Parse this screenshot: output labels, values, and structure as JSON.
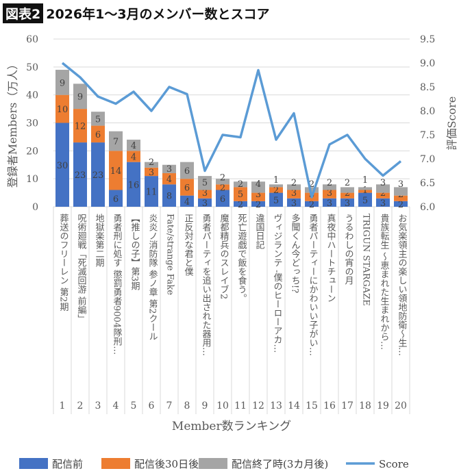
{
  "title_tag": "図表2",
  "title": "2026年1〜3月のメンバー数とスコア",
  "chart_data": {
    "type": "bar+line",
    "xlabel": "Member数ランキング",
    "ylabel_left": "登録者Members（万人）",
    "ylabel_right": "評価Score",
    "ylim_left": [
      0,
      60
    ],
    "yticks_left": [
      "0",
      "10",
      "20",
      "30",
      "40",
      "50",
      "60"
    ],
    "ylim_right": [
      6.0,
      9.5
    ],
    "yticks_right": [
      "6.0",
      "6.5",
      "7.0",
      "7.5",
      "8.0",
      "8.5",
      "9.0",
      "9.5"
    ],
    "grid": true,
    "legend_position": "bottom",
    "ranks": [
      "1",
      "2",
      "3",
      "4",
      "5",
      "6",
      "7",
      "8",
      "9",
      "10",
      "11",
      "12",
      "13",
      "14",
      "15",
      "16",
      "17",
      "18",
      "19",
      "20"
    ],
    "categories": [
      "葬送のフリーレン 第2期",
      "呪術廻戦「死滅回游 前編」",
      "地獄楽第二期",
      "勇者刑に処す 懲罰勇者9004隊刑…",
      "【推しの子】第3期",
      "炎炎ノ消防隊 参ノ章 第2クール",
      "Fate/strange Fake",
      "正反対な君と僕",
      "勇者パーティを追い出された器用…",
      "魔都精兵のスレイブ2",
      "死亡遊戯で飯を食う。",
      "違国日記",
      "ヴィジランテ -僕のヒーローアカ…",
      "多聞くん今どっち!?",
      "勇者パーティーにかわいい子がい…",
      "真夜中ハートチューン",
      "うるわしの宵の月",
      "TRIGUN STARGAZE",
      "貴族転生 〜恵まれた生まれから…",
      "お気楽領主の楽しい領地防衛〜生…"
    ],
    "series": [
      {
        "name": "配信前",
        "type": "bar",
        "color": "#4472c4",
        "values": [
          30,
          23,
          23,
          6,
          16,
          11,
          8,
          4,
          3,
          6,
          2,
          2,
          5,
          3,
          2,
          3,
          3,
          5,
          3,
          2
        ]
      },
      {
        "name": "配信後30日後",
        "type": "bar",
        "color": "#ed7d31",
        "values": [
          10,
          12,
          6,
          14,
          4,
          3,
          4,
          6,
          3,
          2,
          5,
          3,
          2,
          3,
          3,
          3,
          2,
          1,
          2,
          2
        ]
      },
      {
        "name": "配信終了時(3カ月後)",
        "type": "bar",
        "color": "#a5a5a5",
        "values": [
          9,
          9,
          5,
          7,
          4,
          2,
          3,
          6,
          5,
          2,
          2,
          4,
          1,
          2,
          2,
          2,
          2,
          1,
          3,
          3
        ]
      },
      {
        "name": "Score",
        "type": "line",
        "axis": "right",
        "color": "#5b9bd5",
        "values": [
          9.0,
          8.7,
          8.3,
          8.15,
          8.4,
          8.0,
          8.5,
          8.35,
          6.75,
          7.5,
          7.45,
          8.85,
          7.4,
          7.95,
          6.2,
          7.3,
          7.5,
          7.0,
          6.65,
          6.95
        ]
      }
    ]
  }
}
